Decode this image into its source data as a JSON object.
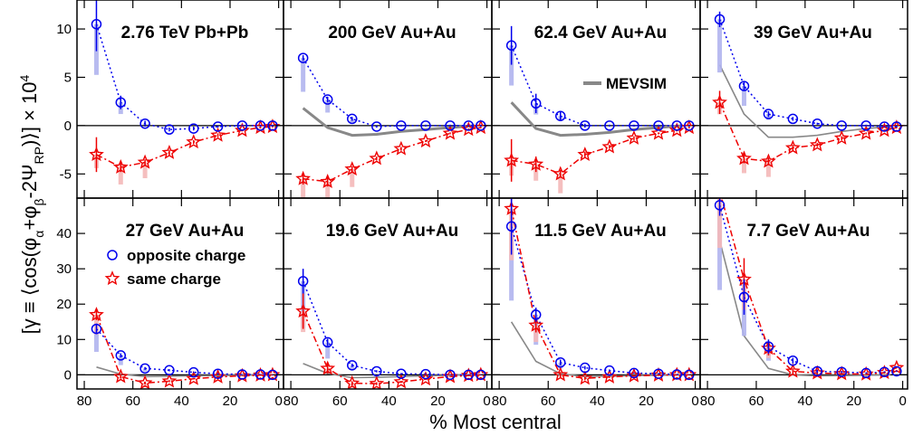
{
  "chart_data": {
    "type": "scatter",
    "xlabel": "% Most central",
    "ylabel": "[γ ≡ ⟨cos(φα+φβ-2ΨRP)⟩] × 10⁴",
    "ylabel_parts": {
      "prefix": "[γ ≡ ⟨cos(φ",
      "sub1": "α",
      "mid1": "+φ",
      "sub2": "β",
      "mid2": "-2Ψ",
      "sub3": "RP",
      "suffix": ")⟩] × 10",
      "sup": "4"
    },
    "x_ticks": [
      "80",
      "60",
      "40",
      "20",
      "0"
    ],
    "x_tick_values": [
      80,
      60,
      40,
      20,
      0
    ],
    "xlim": [
      83,
      -2
    ],
    "rows": [
      {
        "ylim": [
          -7.5,
          13
        ],
        "y_ticks": [
          -5,
          0,
          5,
          10
        ]
      },
      {
        "ylim": [
          -4,
          50
        ],
        "y_ticks": [
          0,
          10,
          20,
          30,
          40
        ]
      }
    ],
    "legend": {
      "opposite": "opposite charge",
      "same": "same charge",
      "mevsim": "MEVSIM"
    },
    "colors": {
      "opposite": "#0000ee",
      "same": "#ee0000",
      "mevsim": "#888888",
      "opp_sys": "#b0b4ee",
      "same_sys": "#f4b8b8"
    },
    "panels": [
      {
        "title": "2.76 TeV Pb+Pb",
        "row": 0,
        "opposite": [
          [
            75,
            10.5
          ],
          [
            65,
            2.4
          ],
          [
            55,
            0.2
          ],
          [
            45,
            -0.4
          ],
          [
            35,
            -0.3
          ],
          [
            25,
            -0.1
          ],
          [
            15,
            0
          ],
          [
            7.5,
            0
          ],
          [
            2.5,
            0
          ]
        ],
        "opposite_err": [
          2.8,
          0.7,
          0.3,
          0.2,
          0.2,
          0.1,
          0.1,
          0.1,
          0.1
        ],
        "same": [
          [
            75,
            -3
          ],
          [
            65,
            -4.3
          ],
          [
            55,
            -3.8
          ],
          [
            45,
            -2.8
          ],
          [
            35,
            -1.7
          ],
          [
            25,
            -1
          ],
          [
            15,
            -0.5
          ],
          [
            7.5,
            -0.2
          ],
          [
            2.5,
            -0.1
          ]
        ],
        "same_err": [
          1.8,
          0.5,
          0.3,
          0.3,
          0.2,
          0.2,
          0.1,
          0.1,
          0.1
        ],
        "mevsim": []
      },
      {
        "title": "200 GeV Au+Au",
        "row": 0,
        "opposite": [
          [
            75,
            7
          ],
          [
            65,
            2.7
          ],
          [
            55,
            0.7
          ],
          [
            45,
            -0.1
          ],
          [
            35,
            0
          ],
          [
            25,
            0
          ],
          [
            15,
            0
          ],
          [
            7.5,
            0
          ],
          [
            2.5,
            0
          ]
        ],
        "opposite_err": [
          0.3,
          0.3,
          0.2,
          0.1,
          0.1,
          0.1,
          0.1,
          0.1,
          0.1
        ],
        "same": [
          [
            75,
            -5.5
          ],
          [
            65,
            -5.8
          ],
          [
            55,
            -4.5
          ],
          [
            45,
            -3.4
          ],
          [
            35,
            -2.4
          ],
          [
            25,
            -1.6
          ],
          [
            15,
            -0.8
          ],
          [
            7.5,
            -0.4
          ],
          [
            2.5,
            -0.2
          ]
        ],
        "same_err": [
          0.6,
          0.5,
          0.3,
          0.2,
          0.2,
          0.1,
          0.1,
          0.1,
          0.1
        ],
        "mevsim": [
          [
            75,
            1.8
          ],
          [
            65,
            -0.2
          ],
          [
            55,
            -1
          ],
          [
            45,
            -0.9
          ],
          [
            35,
            -0.6
          ],
          [
            25,
            -0.4
          ],
          [
            15,
            -0.2
          ],
          [
            5,
            0
          ]
        ]
      },
      {
        "title": "62.4 GeV Au+Au",
        "row": 0,
        "opposite": [
          [
            75,
            8.3
          ],
          [
            65,
            2.3
          ],
          [
            55,
            1
          ],
          [
            45,
            0
          ],
          [
            35,
            0
          ],
          [
            25,
            0
          ],
          [
            15,
            0
          ],
          [
            7.5,
            0
          ],
          [
            2.5,
            0
          ]
        ],
        "opposite_err": [
          2,
          1,
          0.4,
          0.2,
          0.1,
          0.1,
          0.1,
          0.1,
          0.1
        ],
        "same": [
          [
            75,
            -3.6
          ],
          [
            65,
            -4
          ],
          [
            55,
            -5
          ],
          [
            45,
            -3
          ],
          [
            35,
            -2.2
          ],
          [
            25,
            -1.3
          ],
          [
            15,
            -0.8
          ],
          [
            7.5,
            -0.5
          ],
          [
            2.5,
            -0.2
          ]
        ],
        "same_err": [
          2.2,
          0.8,
          0.4,
          0.3,
          0.2,
          0.2,
          0.1,
          0.1,
          0.1
        ],
        "mevsim": [
          [
            75,
            2.4
          ],
          [
            65,
            -0.3
          ],
          [
            55,
            -1
          ],
          [
            45,
            -0.9
          ],
          [
            35,
            -0.7
          ],
          [
            25,
            -0.4
          ],
          [
            15,
            -0.2
          ],
          [
            5,
            0
          ]
        ]
      },
      {
        "title": "39 GeV Au+Au",
        "row": 0,
        "opposite": [
          [
            75,
            11
          ],
          [
            65,
            4.1
          ],
          [
            55,
            1.2
          ],
          [
            45,
            0.7
          ],
          [
            35,
            0.2
          ],
          [
            25,
            0
          ],
          [
            15,
            0
          ],
          [
            7.5,
            -0.1
          ],
          [
            2.5,
            -0.1
          ]
        ],
        "opposite_err": [
          0.8,
          0.4,
          0.3,
          0.2,
          0.1,
          0.1,
          0.1,
          0.1,
          0.1
        ],
        "same": [
          [
            75,
            2.4
          ],
          [
            65,
            -3.4
          ],
          [
            55,
            -3.7
          ],
          [
            45,
            -2.3
          ],
          [
            35,
            -2
          ],
          [
            25,
            -1.3
          ],
          [
            15,
            -0.8
          ],
          [
            7.5,
            -0.5
          ],
          [
            2.5,
            -0.2
          ]
        ],
        "same_err": [
          1.2,
          0.5,
          0.4,
          0.3,
          0.2,
          0.2,
          0.1,
          0.1,
          0.1
        ],
        "mevsim": [
          [
            75,
            6.3
          ],
          [
            65,
            1.2
          ],
          [
            55,
            -1.2
          ],
          [
            45,
            -1.2
          ],
          [
            35,
            -1
          ],
          [
            25,
            -0.6
          ],
          [
            15,
            -0.3
          ],
          [
            5,
            -0.1
          ]
        ]
      },
      {
        "title": "27 GeV Au+Au",
        "row": 1,
        "opposite": [
          [
            75,
            13
          ],
          [
            65,
            5.5
          ],
          [
            55,
            1.8
          ],
          [
            45,
            1.3
          ],
          [
            35,
            0.7
          ],
          [
            25,
            0.3
          ],
          [
            15,
            0.1
          ],
          [
            7.5,
            0.1
          ],
          [
            2.5,
            0
          ]
        ],
        "opposite_err": [
          1.5,
          0.6,
          0.4,
          0.3,
          0.2,
          0.2,
          0.1,
          0.1,
          0.1
        ],
        "same": [
          [
            75,
            17
          ],
          [
            65,
            -0.5
          ],
          [
            55,
            -2.3
          ],
          [
            45,
            -1.8
          ],
          [
            35,
            -1.1
          ],
          [
            25,
            -0.6
          ],
          [
            15,
            -0.3
          ],
          [
            7.5,
            -0.1
          ],
          [
            2.5,
            0
          ]
        ],
        "same_err": [
          1.5,
          0.5,
          0.4,
          0.3,
          0.2,
          0.2,
          0.1,
          0.1,
          0.1
        ],
        "mevsim": [
          [
            75,
            2.2
          ],
          [
            65,
            0.2
          ],
          [
            55,
            -0.5
          ],
          [
            45,
            -0.4
          ],
          [
            35,
            -0.3
          ],
          [
            25,
            -0.2
          ],
          [
            15,
            -0.1
          ],
          [
            5,
            0
          ]
        ]
      },
      {
        "title": "19.6 GeV Au+Au",
        "row": 1,
        "opposite": [
          [
            75,
            26.5
          ],
          [
            65,
            9.2
          ],
          [
            55,
            2.7
          ],
          [
            45,
            1
          ],
          [
            35,
            0.3
          ],
          [
            25,
            0.2
          ],
          [
            15,
            0
          ],
          [
            7.5,
            0
          ],
          [
            2.5,
            0
          ]
        ],
        "opposite_err": [
          3.5,
          1,
          0.5,
          0.3,
          0.2,
          0.2,
          0.1,
          0.1,
          0.1
        ],
        "same": [
          [
            75,
            18
          ],
          [
            65,
            1.8
          ],
          [
            55,
            -2.4
          ],
          [
            45,
            -2.5
          ],
          [
            35,
            -2
          ],
          [
            25,
            -1.2
          ],
          [
            15,
            -0.5
          ],
          [
            7.5,
            -0.2
          ],
          [
            2.5,
            0
          ]
        ],
        "same_err": [
          5,
          1.5,
          0.6,
          0.4,
          0.3,
          0.2,
          0.2,
          0.1,
          0.1
        ],
        "mevsim": [
          [
            75,
            3.2
          ],
          [
            65,
            0.4
          ],
          [
            55,
            -0.8
          ],
          [
            45,
            -0.7
          ],
          [
            35,
            -0.5
          ],
          [
            25,
            -0.3
          ],
          [
            15,
            -0.1
          ],
          [
            5,
            0
          ]
        ]
      },
      {
        "title": "11.5 GeV Au+Au",
        "row": 1,
        "opposite": [
          [
            75,
            42
          ],
          [
            65,
            17
          ],
          [
            55,
            3.5
          ],
          [
            45,
            2
          ],
          [
            35,
            1.2
          ],
          [
            25,
            0.5
          ],
          [
            15,
            0.3
          ],
          [
            7.5,
            0.1
          ],
          [
            2.5,
            0
          ]
        ],
        "opposite_err": [
          8,
          2,
          0.8,
          0.5,
          0.3,
          0.2,
          0.2,
          0.1,
          0.1
        ],
        "same": [
          [
            75,
            47
          ],
          [
            65,
            14
          ],
          [
            55,
            0
          ],
          [
            45,
            -1
          ],
          [
            35,
            -0.6
          ],
          [
            25,
            -0.3
          ],
          [
            15,
            -0.1
          ],
          [
            7.5,
            0
          ],
          [
            2.5,
            0
          ]
        ],
        "same_err": [
          5,
          2,
          0.8,
          0.5,
          0.3,
          0.2,
          0.2,
          0.1,
          0.1
        ],
        "mevsim": [
          [
            75,
            15
          ],
          [
            65,
            3.8
          ],
          [
            55,
            0.3
          ],
          [
            45,
            -0.5
          ],
          [
            35,
            -0.4
          ],
          [
            25,
            -0.2
          ],
          [
            15,
            -0.1
          ],
          [
            5,
            0
          ]
        ]
      },
      {
        "title": "7.7 GeV Au+Au",
        "row": 1,
        "opposite": [
          [
            75,
            48
          ],
          [
            65,
            22
          ],
          [
            55,
            8
          ],
          [
            45,
            4
          ],
          [
            35,
            1
          ],
          [
            25,
            0.8
          ],
          [
            15,
            0.5
          ],
          [
            7.5,
            0.8
          ],
          [
            2.5,
            1
          ]
        ],
        "opposite_err": [
          3,
          5,
          2,
          0.8,
          0.5,
          0.3,
          0.2,
          0.2,
          0.2
        ],
        "same": [
          [
            75,
            52
          ],
          [
            65,
            27
          ],
          [
            55,
            7.5
          ],
          [
            45,
            1
          ],
          [
            35,
            0.5
          ],
          [
            25,
            0.3
          ],
          [
            15,
            0.2
          ],
          [
            7.5,
            0.6
          ],
          [
            2.5,
            2
          ]
        ],
        "same_err": [
          3,
          6,
          2,
          0.8,
          0.5,
          0.3,
          0.2,
          0.2,
          0.2
        ],
        "mevsim": [
          [
            75,
            38
          ],
          [
            65,
            11
          ],
          [
            55,
            1.8
          ],
          [
            45,
            0
          ],
          [
            35,
            -0.3
          ],
          [
            25,
            -0.2
          ],
          [
            15,
            -0.1
          ],
          [
            5,
            0
          ]
        ]
      }
    ]
  }
}
